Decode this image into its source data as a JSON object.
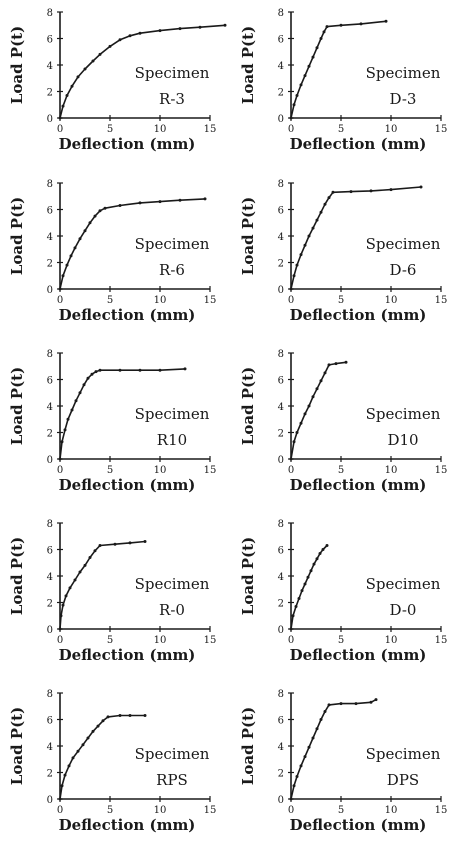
{
  "chart_data": [
    {
      "type": "line",
      "specimen_word": "Specimen",
      "specimen_label": "R-3",
      "xlabel": "Deflection (mm)",
      "ylabel": "Load P(t)",
      "xlim": [
        0,
        15
      ],
      "ylim": [
        0,
        8
      ],
      "xticks": [
        0,
        5,
        10,
        15
      ],
      "yticks": [
        0,
        2,
        4,
        6,
        8
      ],
      "grid": false,
      "x": [
        0,
        0.3,
        0.7,
        1.2,
        1.8,
        2.5,
        3.3,
        4.0,
        5.0,
        6.0,
        7.0,
        8.0,
        10.0,
        12.0,
        14.0,
        16.5
      ],
      "y": [
        0,
        0.9,
        1.7,
        2.4,
        3.1,
        3.7,
        4.3,
        4.8,
        5.4,
        5.9,
        6.2,
        6.4,
        6.6,
        6.75,
        6.85,
        7.0
      ]
    },
    {
      "type": "line",
      "specimen_word": "Specimen",
      "specimen_label": "D-3",
      "xlabel": "Deflection (mm)",
      "ylabel": "Load P(t)",
      "xlim": [
        0,
        15
      ],
      "ylim": [
        0,
        8
      ],
      "xticks": [
        0,
        5,
        10,
        15
      ],
      "yticks": [
        0,
        2,
        4,
        6,
        8
      ],
      "grid": false,
      "x": [
        0,
        0.3,
        0.6,
        1.0,
        1.4,
        1.8,
        2.2,
        2.6,
        3.0,
        3.3,
        3.6,
        5.0,
        7.0,
        9.5
      ],
      "y": [
        0,
        1.0,
        1.7,
        2.5,
        3.2,
        3.9,
        4.6,
        5.3,
        6.0,
        6.5,
        6.9,
        7.0,
        7.1,
        7.3
      ]
    },
    {
      "type": "line",
      "specimen_word": "Specimen",
      "specimen_label": "R-6",
      "xlabel": "Deflection (mm)",
      "ylabel": "Load P(t)",
      "xlim": [
        0,
        15
      ],
      "ylim": [
        0,
        8
      ],
      "xticks": [
        0,
        5,
        10,
        15
      ],
      "yticks": [
        0,
        2,
        4,
        6,
        8
      ],
      "grid": false,
      "x": [
        0,
        0.3,
        0.7,
        1.1,
        1.5,
        2.0,
        2.5,
        3.0,
        3.5,
        4.0,
        4.5,
        6.0,
        8.0,
        10.0,
        12.0,
        14.5
      ],
      "y": [
        0,
        1.0,
        1.8,
        2.5,
        3.1,
        3.8,
        4.4,
        5.0,
        5.5,
        5.9,
        6.1,
        6.3,
        6.5,
        6.6,
        6.7,
        6.8
      ]
    },
    {
      "type": "line",
      "specimen_word": "Specimen",
      "specimen_label": "D-6",
      "xlabel": "Deflection (mm)",
      "ylabel": "Load P(t)",
      "xlim": [
        0,
        15
      ],
      "ylim": [
        0,
        8
      ],
      "xticks": [
        0,
        5,
        10,
        15
      ],
      "yticks": [
        0,
        2,
        4,
        6,
        8
      ],
      "grid": false,
      "x": [
        0,
        0.3,
        0.6,
        1.0,
        1.4,
        1.8,
        2.2,
        2.6,
        3.0,
        3.4,
        3.8,
        4.2,
        6.0,
        8.0,
        10.0,
        13.0
      ],
      "y": [
        0,
        1.0,
        1.8,
        2.6,
        3.3,
        4.0,
        4.6,
        5.2,
        5.8,
        6.4,
        6.9,
        7.3,
        7.35,
        7.4,
        7.5,
        7.7
      ]
    },
    {
      "type": "line",
      "specimen_word": "Specimen",
      "specimen_label": "R10",
      "xlabel": "Deflection (mm)",
      "ylabel": "Load P(t)",
      "xlim": [
        0,
        15
      ],
      "ylim": [
        0,
        8
      ],
      "xticks": [
        0,
        5,
        10,
        15
      ],
      "yticks": [
        0,
        2,
        4,
        6,
        8
      ],
      "grid": false,
      "x": [
        0,
        0.2,
        0.5,
        0.8,
        1.2,
        1.6,
        2.0,
        2.4,
        2.8,
        3.2,
        3.6,
        4.0,
        6.0,
        8.0,
        10.0,
        12.5
      ],
      "y": [
        0,
        1.3,
        2.2,
        3.0,
        3.7,
        4.4,
        5.0,
        5.6,
        6.1,
        6.4,
        6.6,
        6.7,
        6.7,
        6.7,
        6.7,
        6.8
      ]
    },
    {
      "type": "line",
      "specimen_word": "Specimen",
      "specimen_label": "D10",
      "xlabel": "Deflection (mm)",
      "ylabel": "Load P(t)",
      "xlim": [
        0,
        15
      ],
      "ylim": [
        0,
        8
      ],
      "xticks": [
        0,
        5,
        10,
        15
      ],
      "yticks": [
        0,
        2,
        4,
        6,
        8
      ],
      "grid": false,
      "x": [
        0,
        0.3,
        0.6,
        1.0,
        1.4,
        1.8,
        2.2,
        2.6,
        3.0,
        3.4,
        3.8,
        4.5,
        5.5
      ],
      "y": [
        0,
        1.3,
        2.0,
        2.7,
        3.4,
        4.0,
        4.7,
        5.3,
        5.9,
        6.5,
        7.1,
        7.2,
        7.3
      ]
    },
    {
      "type": "line",
      "specimen_word": "Specimen",
      "specimen_label": "R-0",
      "xlabel": "Deflection (mm)",
      "ylabel": "Load P(t)",
      "xlim": [
        0,
        15
      ],
      "ylim": [
        0,
        8
      ],
      "xticks": [
        0,
        5,
        10,
        15
      ],
      "yticks": [
        0,
        2,
        4,
        6,
        8
      ],
      "grid": false,
      "x": [
        0,
        0.1,
        0.3,
        0.6,
        1.0,
        1.5,
        2.0,
        2.5,
        3.0,
        3.5,
        4.0,
        5.5,
        7.0,
        8.5
      ],
      "y": [
        0,
        1.0,
        1.8,
        2.5,
        3.1,
        3.7,
        4.3,
        4.8,
        5.4,
        5.9,
        6.3,
        6.4,
        6.5,
        6.6
      ]
    },
    {
      "type": "line",
      "specimen_word": "Specimen",
      "specimen_label": "D-0",
      "xlabel": "Deflection (mm)",
      "ylabel": "Load P(t)",
      "xlim": [
        0,
        15
      ],
      "ylim": [
        0,
        8
      ],
      "xticks": [
        0,
        5,
        10,
        15
      ],
      "yticks": [
        0,
        2,
        4,
        6,
        8
      ],
      "grid": false,
      "x": [
        0,
        0.2,
        0.5,
        0.8,
        1.1,
        1.4,
        1.7,
        2.0,
        2.3,
        2.6,
        2.9,
        3.2,
        3.6
      ],
      "y": [
        0,
        1.0,
        1.7,
        2.3,
        2.9,
        3.4,
        3.9,
        4.4,
        4.9,
        5.3,
        5.7,
        6.0,
        6.3
      ]
    },
    {
      "type": "line",
      "specimen_word": "Specimen",
      "specimen_label": "RPS",
      "xlabel": "Deflection (mm)",
      "ylabel": "Load P(t)",
      "xlim": [
        0,
        15
      ],
      "ylim": [
        0,
        8
      ],
      "xticks": [
        0,
        5,
        10,
        15
      ],
      "yticks": [
        0,
        2,
        4,
        6,
        8
      ],
      "grid": false,
      "x": [
        0,
        0.2,
        0.5,
        0.9,
        1.3,
        1.8,
        2.3,
        2.8,
        3.3,
        3.8,
        4.3,
        4.8,
        6.0,
        7.0,
        8.5
      ],
      "y": [
        0,
        1.0,
        1.8,
        2.5,
        3.1,
        3.6,
        4.1,
        4.6,
        5.1,
        5.5,
        5.9,
        6.2,
        6.3,
        6.3,
        6.3
      ]
    },
    {
      "type": "line",
      "specimen_word": "Specimen",
      "specimen_label": "DPS",
      "xlabel": "Deflection (mm)",
      "ylabel": "Load P(t)",
      "xlim": [
        0,
        15
      ],
      "ylim": [
        0,
        8
      ],
      "xticks": [
        0,
        5,
        10,
        15
      ],
      "yticks": [
        0,
        2,
        4,
        6,
        8
      ],
      "grid": false,
      "x": [
        0,
        0.3,
        0.6,
        1.0,
        1.4,
        1.8,
        2.2,
        2.6,
        3.0,
        3.4,
        3.8,
        5.0,
        6.5,
        8.0,
        8.5
      ],
      "y": [
        0,
        1.0,
        1.7,
        2.5,
        3.2,
        3.9,
        4.6,
        5.3,
        6.0,
        6.6,
        7.1,
        7.2,
        7.2,
        7.3,
        7.5
      ]
    }
  ]
}
